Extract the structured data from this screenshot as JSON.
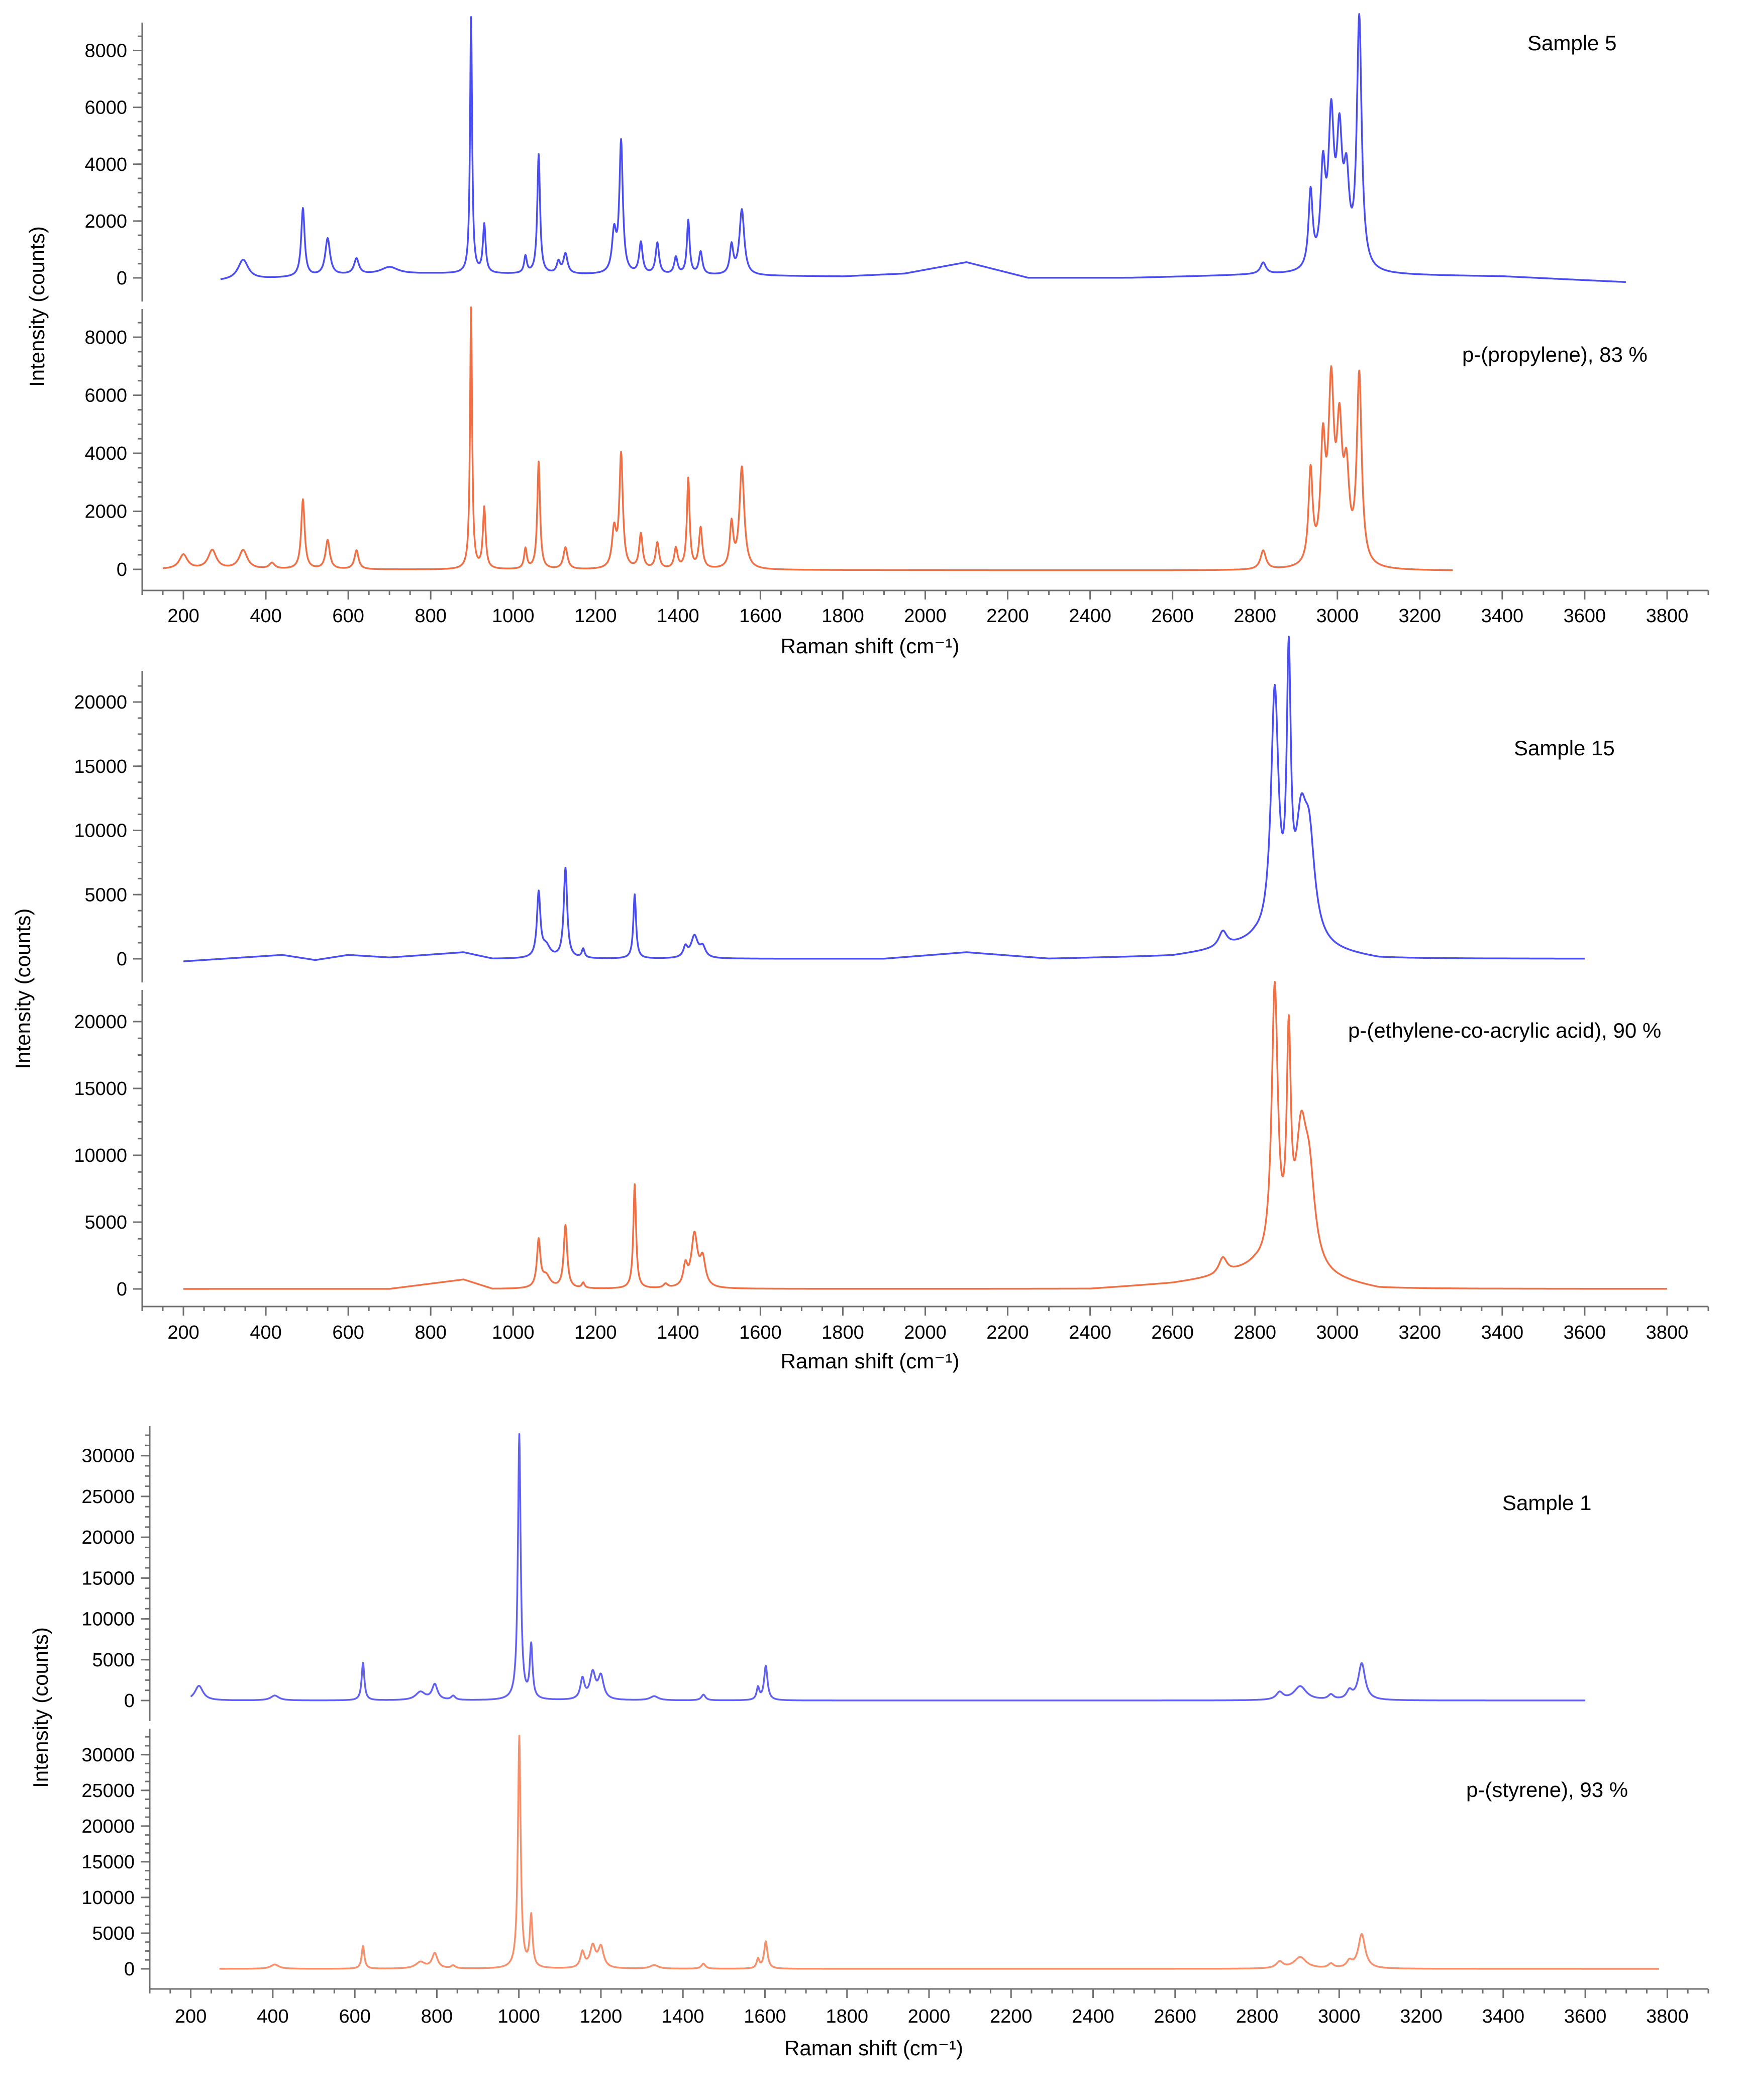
{
  "chart_data": [
    {
      "type": "line",
      "title": "",
      "xlabel": "Raman shift (cm⁻¹)",
      "ylabel": "Intensity (counts)",
      "xlim": [
        100,
        3900
      ],
      "xticks": [
        200,
        400,
        600,
        800,
        1000,
        1200,
        1400,
        1600,
        1800,
        2000,
        2200,
        2400,
        2600,
        2800,
        3000,
        3200,
        3400,
        3600,
        3800
      ],
      "grid": false,
      "panels": [
        {
          "label": "Sample 5",
          "color": "#4a4ef0",
          "ylim": [
            -1000,
            9000
          ],
          "yticks": [
            0,
            2000,
            4000,
            6000,
            8000
          ],
          "range": [
            290,
            3700
          ],
          "baseline": [
            [
              290,
              -100
            ],
            [
              600,
              100
            ],
            [
              800,
              150
            ],
            [
              1800,
              50
            ],
            [
              1950,
              150
            ],
            [
              2100,
              550
            ],
            [
              2250,
              0
            ],
            [
              2500,
              0
            ],
            [
              2800,
              100
            ],
            [
              3100,
              100
            ],
            [
              3400,
              50
            ],
            [
              3700,
              -150
            ]
          ],
          "peaks": [
            [
              345,
              700,
              15
            ],
            [
              490,
              2400,
              5
            ],
            [
              550,
              1300,
              7
            ],
            [
              620,
              550,
              7
            ],
            [
              700,
              250,
              25
            ],
            [
              898,
              9000,
              3
            ],
            [
              930,
              1700,
              4
            ],
            [
              1030,
              600,
              4
            ],
            [
              1062,
              4200,
              4
            ],
            [
              1110,
              400,
              5
            ],
            [
              1127,
              700,
              6
            ],
            [
              1245,
              1400,
              6
            ],
            [
              1262,
              4600,
              5
            ],
            [
              1310,
              1100,
              5
            ],
            [
              1350,
              1100,
              5
            ],
            [
              1395,
              600,
              5
            ],
            [
              1425,
              1900,
              4
            ],
            [
              1455,
              800,
              5
            ],
            [
              1530,
              1000,
              5
            ],
            [
              1555,
              2300,
              7
            ],
            [
              2820,
              400,
              8
            ],
            [
              2935,
              2700,
              6
            ],
            [
              2965,
              3300,
              7
            ],
            [
              2985,
              5000,
              8
            ],
            [
              3005,
              4200,
              8
            ],
            [
              3022,
              2800,
              8
            ],
            [
              3053,
              8800,
              7
            ]
          ]
        },
        {
          "label": "p-(propylene), 83 %",
          "color": "#f07045",
          "ylim": [
            -1000,
            9000
          ],
          "yticks": [
            0,
            2000,
            4000,
            6000,
            8000
          ],
          "range": [
            150,
            3280
          ],
          "baseline": [
            [
              150,
              0
            ],
            [
              3280,
              -50
            ]
          ],
          "peaks": [
            [
              200,
              500,
              12
            ],
            [
              270,
              650,
              12
            ],
            [
              345,
              650,
              12
            ],
            [
              415,
              200,
              8
            ],
            [
              490,
              2400,
              5
            ],
            [
              550,
              1000,
              6
            ],
            [
              620,
              650,
              6
            ],
            [
              898,
              9000,
              3
            ],
            [
              930,
              2100,
              4
            ],
            [
              1030,
              700,
              4
            ],
            [
              1062,
              3700,
              4
            ],
            [
              1127,
              750,
              6
            ],
            [
              1245,
              1300,
              6
            ],
            [
              1262,
              3900,
              5
            ],
            [
              1310,
              1200,
              5
            ],
            [
              1350,
              900,
              5
            ],
            [
              1395,
              700,
              5
            ],
            [
              1425,
              3100,
              4
            ],
            [
              1455,
              1400,
              5
            ],
            [
              1530,
              1500,
              5
            ],
            [
              1555,
              3500,
              7
            ],
            [
              2820,
              650,
              8
            ],
            [
              2935,
              3200,
              6
            ],
            [
              2965,
              3900,
              7
            ],
            [
              2985,
              5800,
              8
            ],
            [
              3005,
              4200,
              8
            ],
            [
              3022,
              2800,
              8
            ],
            [
              3053,
              6500,
              7
            ]
          ]
        }
      ]
    },
    {
      "type": "line",
      "title": "",
      "xlabel": "Raman shift (cm⁻¹)",
      "ylabel": "Intensity (counts)",
      "xlim": [
        100,
        3900
      ],
      "xticks": [
        200,
        400,
        600,
        800,
        1000,
        1200,
        1400,
        1600,
        1800,
        2000,
        2200,
        2400,
        2600,
        2800,
        3000,
        3200,
        3400,
        3600,
        3800
      ],
      "grid": false,
      "panels": [
        {
          "label": "Sample 15",
          "color": "#4a4ef0",
          "ylim": [
            -2500,
            24000
          ],
          "yticks": [
            0,
            5000,
            10000,
            15000,
            20000
          ],
          "range": [
            200,
            3600
          ],
          "baseline": [
            [
              200,
              -200
            ],
            [
              440,
              300
            ],
            [
              520,
              -100
            ],
            [
              600,
              300
            ],
            [
              700,
              100
            ],
            [
              880,
              500
            ],
            [
              950,
              0
            ],
            [
              1550,
              0
            ],
            [
              1900,
              0
            ],
            [
              2100,
              500
            ],
            [
              2300,
              0
            ],
            [
              2600,
              200
            ],
            [
              2700,
              600
            ],
            [
              2800,
              1200
            ],
            [
              3000,
              400
            ],
            [
              3100,
              0
            ],
            [
              3600,
              0
            ]
          ],
          "peaks": [
            [
              1062,
              5000,
              5
            ],
            [
              1080,
              900,
              12
            ],
            [
              1127,
              7000,
              5
            ],
            [
              1170,
              700,
              4
            ],
            [
              1295,
              5000,
              4
            ],
            [
              1418,
              800,
              6
            ],
            [
              1440,
              1700,
              10
            ],
            [
              1460,
              800,
              8
            ],
            [
              2722,
              1200,
              12
            ],
            [
              2848,
              19000,
              11
            ],
            [
              2882,
              20000,
              6
            ],
            [
              2912,
              8000,
              16
            ],
            [
              2932,
              7000,
              16
            ]
          ]
        },
        {
          "label": "p-(ethylene-co-acrylic acid), 90 %",
          "color": "#f07045",
          "ylim": [
            -2500,
            24000
          ],
          "yticks": [
            0,
            5000,
            10000,
            15000,
            20000
          ],
          "range": [
            200,
            3800
          ],
          "baseline": [
            [
              200,
              0
            ],
            [
              700,
              0
            ],
            [
              880,
              700
            ],
            [
              950,
              0
            ],
            [
              2400,
              0
            ],
            [
              2600,
              400
            ],
            [
              2700,
              800
            ],
            [
              2800,
              1500
            ],
            [
              3000,
              500
            ],
            [
              3100,
              0
            ],
            [
              3800,
              0
            ]
          ],
          "peaks": [
            [
              1062,
              3500,
              5
            ],
            [
              1080,
              900,
              12
            ],
            [
              1127,
              4700,
              5
            ],
            [
              1170,
              400,
              4
            ],
            [
              1295,
              7800,
              4
            ],
            [
              1370,
              300,
              6
            ],
            [
              1418,
              1500,
              6
            ],
            [
              1440,
              3900,
              9
            ],
            [
              1460,
              2000,
              8
            ],
            [
              2722,
              1200,
              12
            ],
            [
              2848,
              20500,
              9
            ],
            [
              2882,
              15500,
              6
            ],
            [
              2912,
              9000,
              16
            ],
            [
              2932,
              6000,
              16
            ]
          ]
        }
      ]
    },
    {
      "type": "line",
      "title": "",
      "xlabel": "Raman shift (cm⁻¹)",
      "ylabel": "Intensity (counts)",
      "xlim": [
        100,
        3900
      ],
      "xticks": [
        200,
        400,
        600,
        800,
        1000,
        1200,
        1400,
        1600,
        1800,
        2000,
        2200,
        2400,
        2600,
        2800,
        3000,
        3200,
        3400,
        3600,
        3800
      ],
      "grid": false,
      "panels": [
        {
          "label": "Sample 1",
          "color": "#6060f2",
          "ylim": [
            -2500,
            34000
          ],
          "yticks": [
            0,
            5000,
            10000,
            15000,
            20000,
            25000,
            30000
          ],
          "range": [
            200,
            3600
          ],
          "baseline": [
            [
              200,
              0
            ],
            [
              3600,
              0
            ]
          ],
          "peaks": [
            [
              220,
              1800,
              12
            ],
            [
              405,
              600,
              12
            ],
            [
              620,
              4600,
              4
            ],
            [
              760,
              1000,
              14
            ],
            [
              795,
              1900,
              8
            ],
            [
              840,
              500,
              6
            ],
            [
              1001,
              32500,
              4
            ],
            [
              1030,
              6500,
              4
            ],
            [
              1155,
              2500,
              6
            ],
            [
              1180,
              3200,
              8
            ],
            [
              1200,
              2800,
              8
            ],
            [
              1330,
              500,
              12
            ],
            [
              1450,
              700,
              6
            ],
            [
              1583,
              1500,
              4
            ],
            [
              1602,
              4200,
              5
            ],
            [
              2855,
              900,
              10
            ],
            [
              2905,
              1700,
              18
            ],
            [
              2980,
              600,
              8
            ],
            [
              3025,
              1000,
              8
            ],
            [
              3055,
              4500,
              10
            ]
          ]
        },
        {
          "label": "p-(styrene), 93 %",
          "color": "#f78f6a",
          "ylim": [
            -2500,
            34000
          ],
          "yticks": [
            0,
            5000,
            10000,
            15000,
            20000,
            25000,
            30000
          ],
          "range": [
            270,
            3780
          ],
          "baseline": [
            [
              270,
              0
            ],
            [
              3780,
              0
            ]
          ],
          "peaks": [
            [
              405,
              600,
              12
            ],
            [
              620,
              3200,
              4
            ],
            [
              760,
              900,
              14
            ],
            [
              795,
              2100,
              8
            ],
            [
              840,
              400,
              6
            ],
            [
              1001,
              32500,
              4
            ],
            [
              1030,
              7200,
              4
            ],
            [
              1155,
              2200,
              6
            ],
            [
              1180,
              3000,
              8
            ],
            [
              1200,
              2900,
              8
            ],
            [
              1330,
              500,
              12
            ],
            [
              1450,
              700,
              6
            ],
            [
              1583,
              1300,
              4
            ],
            [
              1602,
              3800,
              5
            ],
            [
              2855,
              900,
              10
            ],
            [
              2905,
              1600,
              18
            ],
            [
              2980,
              600,
              8
            ],
            [
              3025,
              900,
              8
            ],
            [
              3055,
              4800,
              10
            ]
          ]
        }
      ]
    }
  ]
}
